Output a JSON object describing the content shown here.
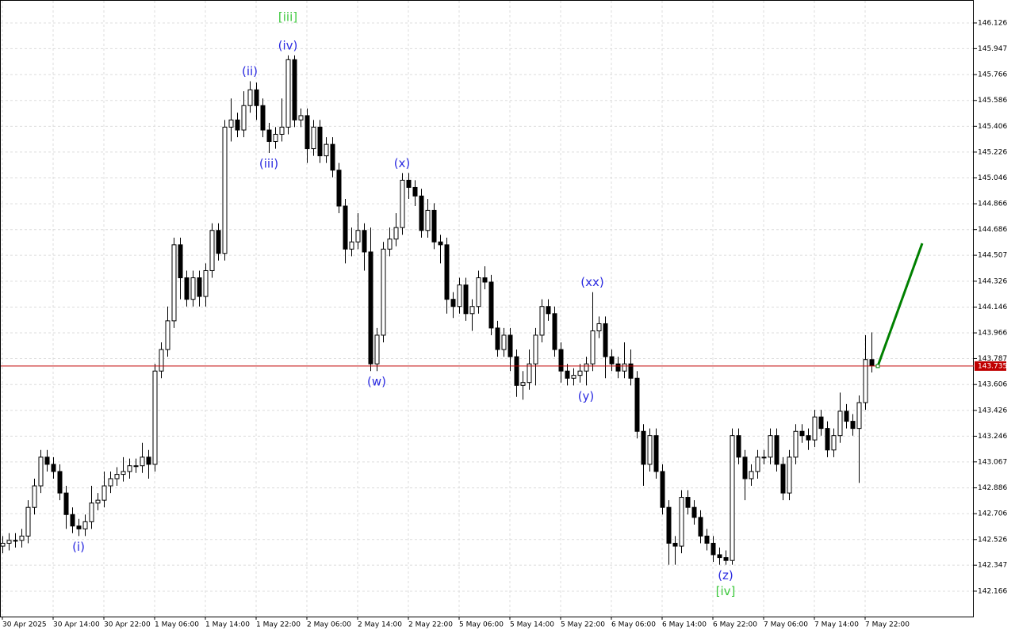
{
  "chart_data": {
    "type": "candlestick",
    "xticks": [
      {
        "value": 0,
        "label": "30 Apr 2025"
      },
      {
        "value": 8,
        "label": "30 Apr 14:00"
      },
      {
        "value": 16,
        "label": "30 Apr 22:00"
      },
      {
        "value": 24,
        "label": "1 May 06:00"
      },
      {
        "value": 32,
        "label": "1 May 14:00"
      },
      {
        "value": 40,
        "label": "1 May 22:00"
      },
      {
        "value": 48,
        "label": "2 May 06:00"
      },
      {
        "value": 56,
        "label": "2 May 14:00"
      },
      {
        "value": 64,
        "label": "2 May 22:00"
      },
      {
        "value": 72,
        "label": "5 May 06:00"
      },
      {
        "value": 80,
        "label": "5 May 14:00"
      },
      {
        "value": 88,
        "label": "5 May 22:00"
      },
      {
        "value": 96,
        "label": "6 May 06:00"
      },
      {
        "value": 104,
        "label": "6 May 14:00"
      },
      {
        "value": 112,
        "label": "6 May 22:00"
      },
      {
        "value": 120,
        "label": "7 May 06:00"
      },
      {
        "value": 128,
        "label": "7 May 14:00"
      },
      {
        "value": 136,
        "label": "7 May 22:00"
      }
    ],
    "ylim": [
      141.989,
      146.286
    ],
    "yticks": [
      146.126,
      145.947,
      145.766,
      145.586,
      145.406,
      145.226,
      145.046,
      144.866,
      144.686,
      144.507,
      144.326,
      144.146,
      143.966,
      143.787,
      143.606,
      143.426,
      143.246,
      143.067,
      142.886,
      142.706,
      142.526,
      142.347,
      142.166
    ],
    "grid": true,
    "open": [
      142.48,
      142.5,
      142.52,
      142.52,
      142.55,
      142.75,
      142.9,
      143.1,
      143.05,
      143.0,
      142.85,
      142.7,
      142.62,
      142.6,
      142.65,
      142.78,
      142.8,
      142.9,
      142.95,
      142.98,
      143.0,
      143.04,
      143.04,
      143.1,
      143.05,
      143.7,
      143.85,
      144.05,
      144.58,
      144.35,
      144.2,
      144.35,
      144.22,
      144.4,
      144.68,
      144.52,
      145.4,
      145.45,
      145.38,
      145.55,
      145.66,
      145.55,
      145.38,
      145.3,
      145.35,
      145.4,
      145.87,
      145.45,
      145.48,
      145.25,
      145.4,
      145.2,
      145.28,
      145.1,
      144.85,
      144.55,
      144.6,
      144.68,
      144.53,
      143.75,
      143.95,
      144.55,
      144.62,
      144.7,
      145.03,
      144.98,
      144.92,
      144.68,
      144.82,
      144.6,
      144.58,
      144.2,
      144.15,
      144.3,
      144.1,
      144.15,
      144.35,
      144.32,
      144.0,
      143.85,
      143.95,
      143.8,
      143.6,
      143.62,
      143.75,
      143.95,
      144.15,
      144.1,
      143.85,
      143.7,
      143.65,
      143.67,
      143.7,
      143.75,
      143.98,
      144.03,
      143.8,
      143.75,
      143.7,
      143.75,
      143.65,
      143.28,
      143.05,
      143.25,
      143.0,
      142.75,
      142.5,
      142.48,
      142.82,
      142.75,
      142.68,
      142.55,
      142.5,
      142.42,
      142.4,
      142.38,
      143.25,
      143.1,
      142.95,
      143.0,
      143.1,
      143.1,
      143.25,
      143.05,
      142.85,
      143.1,
      143.28,
      143.25,
      143.22,
      143.38,
      143.3,
      143.15,
      143.25,
      143.42,
      143.35,
      143.3,
      143.48,
      143.78
    ],
    "high": [
      142.55,
      142.57,
      142.57,
      142.6,
      142.8,
      142.95,
      143.15,
      143.15,
      143.1,
      143.05,
      142.9,
      142.75,
      142.67,
      142.7,
      142.9,
      142.85,
      143.0,
      143.0,
      143.03,
      143.1,
      143.09,
      143.09,
      143.2,
      143.15,
      143.75,
      143.9,
      144.15,
      144.63,
      144.63,
      144.4,
      144.4,
      144.4,
      144.45,
      144.73,
      144.73,
      145.45,
      145.6,
      145.5,
      145.65,
      145.72,
      145.71,
      145.6,
      145.43,
      145.4,
      145.6,
      145.9,
      145.9,
      145.53,
      145.53,
      145.45,
      145.45,
      145.33,
      145.33,
      145.15,
      144.9,
      144.7,
      144.8,
      144.73,
      144.7,
      144.0,
      144.6,
      144.7,
      144.8,
      145.08,
      145.08,
      145.03,
      144.97,
      144.9,
      144.87,
      144.65,
      144.63,
      144.25,
      144.35,
      144.35,
      144.2,
      144.4,
      144.43,
      144.37,
      144.05,
      144.0,
      144.0,
      143.85,
      143.7,
      143.85,
      144.0,
      144.2,
      144.2,
      144.15,
      143.9,
      143.75,
      143.72,
      143.75,
      143.8,
      144.25,
      144.08,
      144.08,
      143.85,
      143.8,
      143.9,
      143.85,
      143.7,
      143.33,
      143.3,
      143.3,
      143.05,
      142.8,
      142.55,
      142.87,
      142.87,
      142.8,
      142.73,
      142.6,
      142.55,
      142.47,
      142.45,
      143.3,
      143.3,
      143.15,
      143.05,
      143.15,
      143.15,
      143.3,
      143.3,
      143.1,
      143.15,
      143.33,
      143.33,
      143.3,
      143.43,
      143.43,
      143.35,
      143.3,
      143.55,
      143.47,
      143.4,
      143.53,
      143.95,
      143.97
    ],
    "low": [
      142.43,
      142.45,
      142.47,
      142.47,
      142.5,
      142.7,
      142.85,
      143.0,
      142.95,
      142.8,
      142.6,
      142.57,
      142.55,
      142.55,
      142.6,
      142.73,
      142.75,
      142.85,
      142.9,
      142.93,
      142.95,
      142.99,
      142.99,
      142.95,
      143.0,
      143.65,
      143.8,
      144.0,
      144.2,
      144.15,
      144.15,
      144.15,
      144.15,
      144.35,
      144.47,
      144.47,
      145.3,
      145.33,
      145.33,
      145.5,
      145.45,
      145.33,
      145.22,
      145.25,
      145.3,
      145.35,
      145.4,
      145.4,
      145.15,
      145.2,
      145.15,
      145.15,
      145.05,
      144.8,
      144.45,
      144.5,
      144.55,
      144.4,
      143.7,
      143.7,
      143.9,
      144.5,
      144.57,
      144.65,
      144.9,
      144.85,
      144.63,
      144.63,
      144.55,
      144.45,
      144.1,
      144.07,
      144.1,
      144.05,
      143.98,
      144.1,
      144.27,
      143.95,
      143.8,
      143.8,
      143.7,
      143.52,
      143.5,
      143.57,
      143.6,
      143.9,
      144.05,
      143.8,
      143.62,
      143.6,
      143.6,
      143.62,
      143.6,
      143.7,
      143.93,
      143.65,
      143.7,
      143.65,
      143.65,
      143.6,
      143.23,
      142.9,
      143.0,
      142.95,
      142.7,
      142.35,
      142.35,
      142.43,
      142.7,
      142.63,
      142.5,
      142.45,
      142.37,
      142.35,
      142.35,
      142.35,
      143.05,
      142.8,
      142.9,
      142.95,
      143.05,
      143.05,
      143.0,
      142.8,
      142.8,
      143.05,
      143.2,
      143.15,
      143.17,
      143.25,
      143.1,
      143.1,
      143.2,
      143.3,
      143.25,
      142.92,
      143.43,
      143.69
    ],
    "close": [
      142.5,
      142.52,
      142.52,
      142.55,
      142.75,
      142.9,
      143.1,
      143.05,
      143.0,
      142.85,
      142.7,
      142.62,
      142.6,
      142.65,
      142.78,
      142.8,
      142.9,
      142.95,
      142.98,
      143.0,
      143.04,
      143.04,
      143.1,
      143.05,
      143.7,
      143.85,
      144.05,
      144.58,
      144.35,
      144.2,
      144.35,
      144.22,
      144.4,
      144.68,
      144.52,
      145.4,
      145.45,
      145.38,
      145.55,
      145.66,
      145.55,
      145.38,
      145.3,
      145.35,
      145.4,
      145.87,
      145.45,
      145.48,
      145.25,
      145.4,
      145.2,
      145.28,
      145.1,
      144.85,
      144.55,
      144.6,
      144.68,
      144.53,
      143.75,
      143.95,
      144.55,
      144.62,
      144.7,
      145.03,
      144.98,
      144.92,
      144.68,
      144.82,
      144.6,
      144.58,
      144.2,
      144.15,
      144.3,
      144.1,
      144.15,
      144.35,
      144.32,
      144.0,
      143.85,
      143.95,
      143.8,
      143.6,
      143.62,
      143.75,
      143.95,
      144.15,
      144.1,
      143.85,
      143.7,
      143.65,
      143.67,
      143.7,
      143.75,
      143.98,
      144.03,
      143.8,
      143.75,
      143.7,
      143.75,
      143.65,
      143.28,
      143.05,
      143.25,
      143.0,
      142.75,
      142.5,
      142.48,
      142.82,
      142.75,
      142.68,
      142.55,
      142.5,
      142.42,
      142.4,
      142.38,
      143.25,
      143.1,
      142.95,
      143.0,
      143.1,
      143.1,
      143.25,
      143.05,
      142.85,
      143.1,
      143.28,
      143.25,
      143.22,
      143.38,
      143.3,
      143.15,
      143.25,
      143.42,
      143.35,
      143.3,
      143.48,
      143.78,
      143.74
    ],
    "price_line": {
      "value": 143.735,
      "color": "#c00000"
    },
    "forecast": {
      "x": [
        138,
        145
      ],
      "values": [
        143.735,
        144.59
      ],
      "color": "#008000"
    },
    "annotations": [
      {
        "text": "(i)",
        "index": 12,
        "position": "below",
        "color": "#2a2ae0"
      },
      {
        "text": "(ii)",
        "index": 39,
        "position": "above",
        "color": "#2a2ae0"
      },
      {
        "text": "(iii)",
        "index": 42,
        "position": "below",
        "color": "#2a2ae0"
      },
      {
        "text": "(iv)",
        "index": 45,
        "position": "above",
        "color": "#2a2ae0"
      },
      {
        "text": "[iii]",
        "index": 45,
        "position": "above",
        "color": "#3cc83c"
      },
      {
        "text": "(w)",
        "index": 59,
        "position": "below",
        "color": "#2a2ae0"
      },
      {
        "text": "(x)",
        "index": 63,
        "position": "above",
        "color": "#2a2ae0"
      },
      {
        "text": "(y)",
        "index": 92,
        "position": "below",
        "color": "#2a2ae0"
      },
      {
        "text": "(xx)",
        "index": 93,
        "position": "above",
        "color": "#2a2ae0"
      },
      {
        "text": "(z)",
        "index": 114,
        "position": "below",
        "color": "#2a2ae0"
      },
      {
        "text": "[iv]",
        "index": 114,
        "position": "below",
        "color": "#3cc83c"
      }
    ]
  }
}
